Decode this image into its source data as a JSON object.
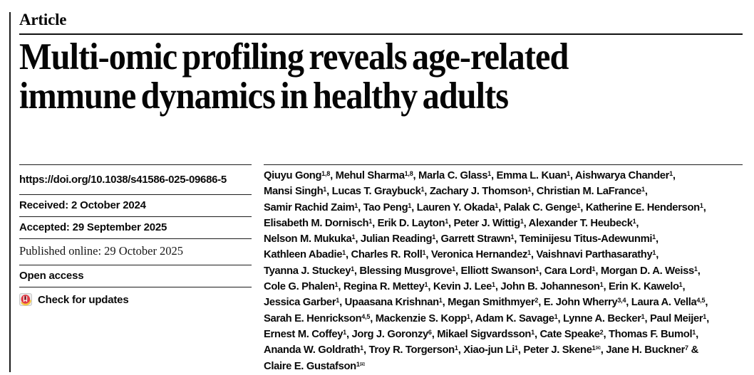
{
  "header": {
    "kicker": "Article",
    "title_line1": "Multi-omic profiling reveals age-related",
    "title_line2": "immune dynamics in healthy adults"
  },
  "metadata": {
    "doi": "https://doi.org/10.1038/s41586-025-09686-5",
    "received": "Received: 2 October 2024",
    "accepted": "Accepted: 29 September 2025",
    "published": "Published online: 29 October 2025",
    "open_access": "Open access",
    "check_for_updates": "Check for updates"
  },
  "icons": {
    "crossmark": "crossmark-check-for-updates-icon"
  },
  "colors": {
    "crossmark_red": "#e23a45",
    "crossmark_yellow": "#f5c63e",
    "crossmark_dark": "#7e1f28",
    "icon_bg": "#ebebeb",
    "icon_border": "#c9c9c9",
    "rule": "#1c1c1c"
  },
  "authors": {
    "lines": [
      "Qiuyu Gong^{1,8}, Mehul Sharma^{1,8}, Marla C. Glass^{1}, Emma L. Kuan^{1}, Aishwarya Chander^{1},",
      "Mansi Singh^{1}, Lucas T. Graybuck^{1}, Zachary J. Thomson^{1}, Christian M. LaFrance^{1},",
      "Samir Rachid Zaim^{1}, Tao Peng^{1}, Lauren Y. Okada^{1}, Palak C. Genge^{1}, Katherine E. Henderson^{1},",
      "Elisabeth M. Dornisch^{1}, Erik D. Layton^{1}, Peter J. Wittig^{1}, Alexander T. Heubeck^{1},",
      "Nelson M. Mukuka^{1}, Julian Reading^{1}, Garrett Strawn^{1}, Teminijesu Titus-Adewunmi^{1},",
      "Kathleen Abadie^{1}, Charles R. Roll^{1}, Veronica Hernandez^{1}, Vaishnavi Parthasarathy^{1},",
      "Tyanna J. Stuckey^{1}, Blessing Musgrove^{1}, Elliott Swanson^{1}, Cara Lord^{1}, Morgan D. A. Weiss^{1},",
      "Cole G. Phalen^{1}, Regina R. Mettey^{1}, Kevin J. Lee^{1}, John B. Johanneson^{1}, Erin K. Kawelo^{1},",
      "Jessica Garber^{1}, Upaasana Krishnan^{1}, Megan Smithmyer^{2}, E. John Wherry^{3,4}, Laura A. Vella^{4,5},",
      "Sarah E. Henrickson^{4,5}, Mackenzie S. Kopp^{1}, Adam K. Savage^{1}, Lynne A. Becker^{1}, Paul Meijer^{1},",
      "Ernest M. Coffey^{1}, Jorg J. Goronzy^{6}, Mikael Sigvardsson^{1}, Cate Speake^{2}, Thomas F. Bumol^{1},",
      "Ananda W. Goldrath^{1}, Troy R. Torgerson^{1}, Xiao-jun Li^{1}, Peter J. Skene^{1✉}, Jane H. Buckner^{7} &",
      "Claire E. Gustafson^{1✉}"
    ]
  }
}
